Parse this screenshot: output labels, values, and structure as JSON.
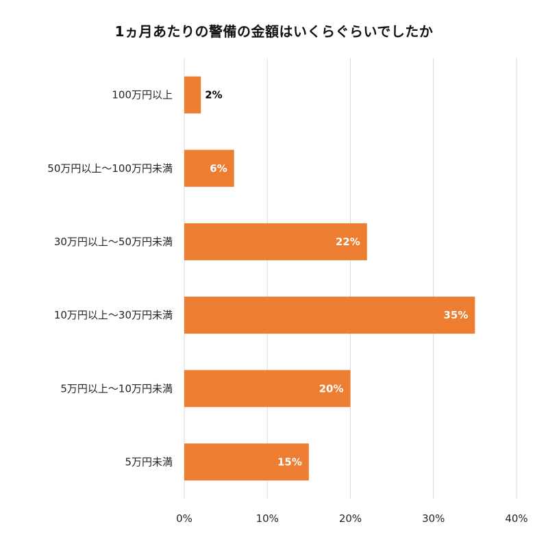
{
  "chart_data": {
    "type": "bar",
    "orientation": "horizontal",
    "title": "1ヵ月あたりの警備の金額はいくらぐらいでしたか",
    "categories": [
      "100万円以上",
      "50万円以上～100万円未満",
      "30万円以上～50万円未満",
      "10万円以上～30万円未満",
      "5万円以上～10万円未満",
      "5万円未満"
    ],
    "values": [
      2,
      6,
      22,
      35,
      20,
      15
    ],
    "data_labels": [
      "2%",
      "6%",
      "22%",
      "35%",
      "20%",
      "15%"
    ],
    "xlim": [
      0,
      40
    ],
    "x_ticks": [
      0,
      10,
      20,
      30,
      40
    ],
    "x_tick_labels": [
      "0%",
      "10%",
      "20%",
      "30%",
      "40%"
    ],
    "grid": "vertical",
    "legend": "none",
    "colors": {
      "bar": "#ED7D31",
      "grid": "#D9D9D9",
      "label_inside": "#FFFFFF",
      "label_outside": "#000000"
    }
  }
}
